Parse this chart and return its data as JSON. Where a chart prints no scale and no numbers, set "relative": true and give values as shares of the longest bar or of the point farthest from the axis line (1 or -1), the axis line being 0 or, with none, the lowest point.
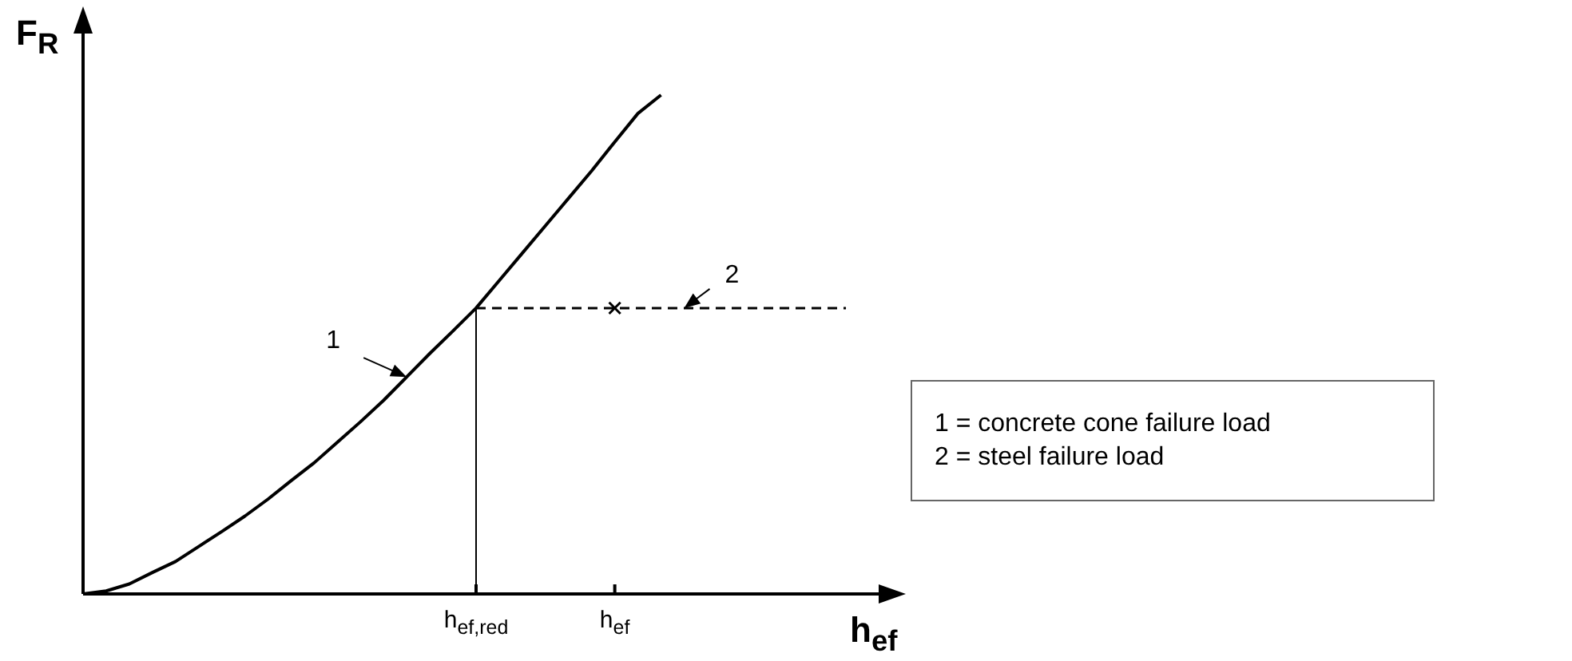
{
  "chart_data": {
    "type": "line",
    "relative": true,
    "xlabel": "h$_{ef}$",
    "ylabel": "F$_{R}$",
    "categories": [
      null,
      null,
      null,
      null,
      null,
      null,
      null,
      null,
      null,
      null,
      null,
      null,
      null,
      null,
      null,
      null,
      null,
      "h$_{ef,red}$",
      null,
      null,
      null,
      null,
      null,
      "h$_{ef}$",
      null,
      null,
      null,
      null,
      null,
      null,
      null,
      null,
      null,
      null,
      null
    ],
    "series": [
      {
        "color": "#000000",
        "values": [
          0,
          0.006,
          0.02,
          0.043,
          0.065,
          0.095,
          0.125,
          0.156,
          0.19,
          0.227,
          0.263,
          0.304,
          0.345,
          0.388,
          0.435,
          0.482,
          0.527,
          0.573,
          0.628,
          0.683,
          0.738,
          0.793,
          0.848,
          0.906,
          0.963,
          1,
          null,
          null,
          null,
          null,
          null,
          null,
          null,
          null,
          null
        ],
        "line_style": "solid",
        "marker": "none"
      },
      {
        "color": "#000000",
        "values": [
          null,
          null,
          null,
          null,
          null,
          null,
          null,
          null,
          null,
          null,
          null,
          null,
          null,
          null,
          null,
          null,
          null,
          0.573,
          0.573,
          0.573,
          0.573,
          0.573,
          0.573,
          0.573,
          0.573,
          0.573,
          0.573,
          0.573,
          0.573,
          0.573,
          0.573,
          0.573,
          0.573,
          0.573,
          null
        ],
        "line_style": "dashed",
        "marker": "none"
      },
      {
        "type": "scatter",
        "color": "#000000",
        "values": [
          null,
          null,
          null,
          null,
          null,
          null,
          null,
          null,
          null,
          null,
          null,
          null,
          null,
          null,
          null,
          null,
          null,
          null,
          null,
          null,
          null,
          null,
          null,
          0.573,
          null,
          null,
          null,
          null,
          null,
          null,
          null,
          null,
          null,
          null,
          null
        ],
        "marker": "cross"
      }
    ],
    "ref_lines": [
      {
        "axis": "x",
        "value": "h$_{ef,red}$",
        "color": "#000000"
      }
    ],
    "annotations": [
      "1",
      "2",
      "1 = concrete cone failure load",
      "2 = steel failure load"
    ]
  }
}
